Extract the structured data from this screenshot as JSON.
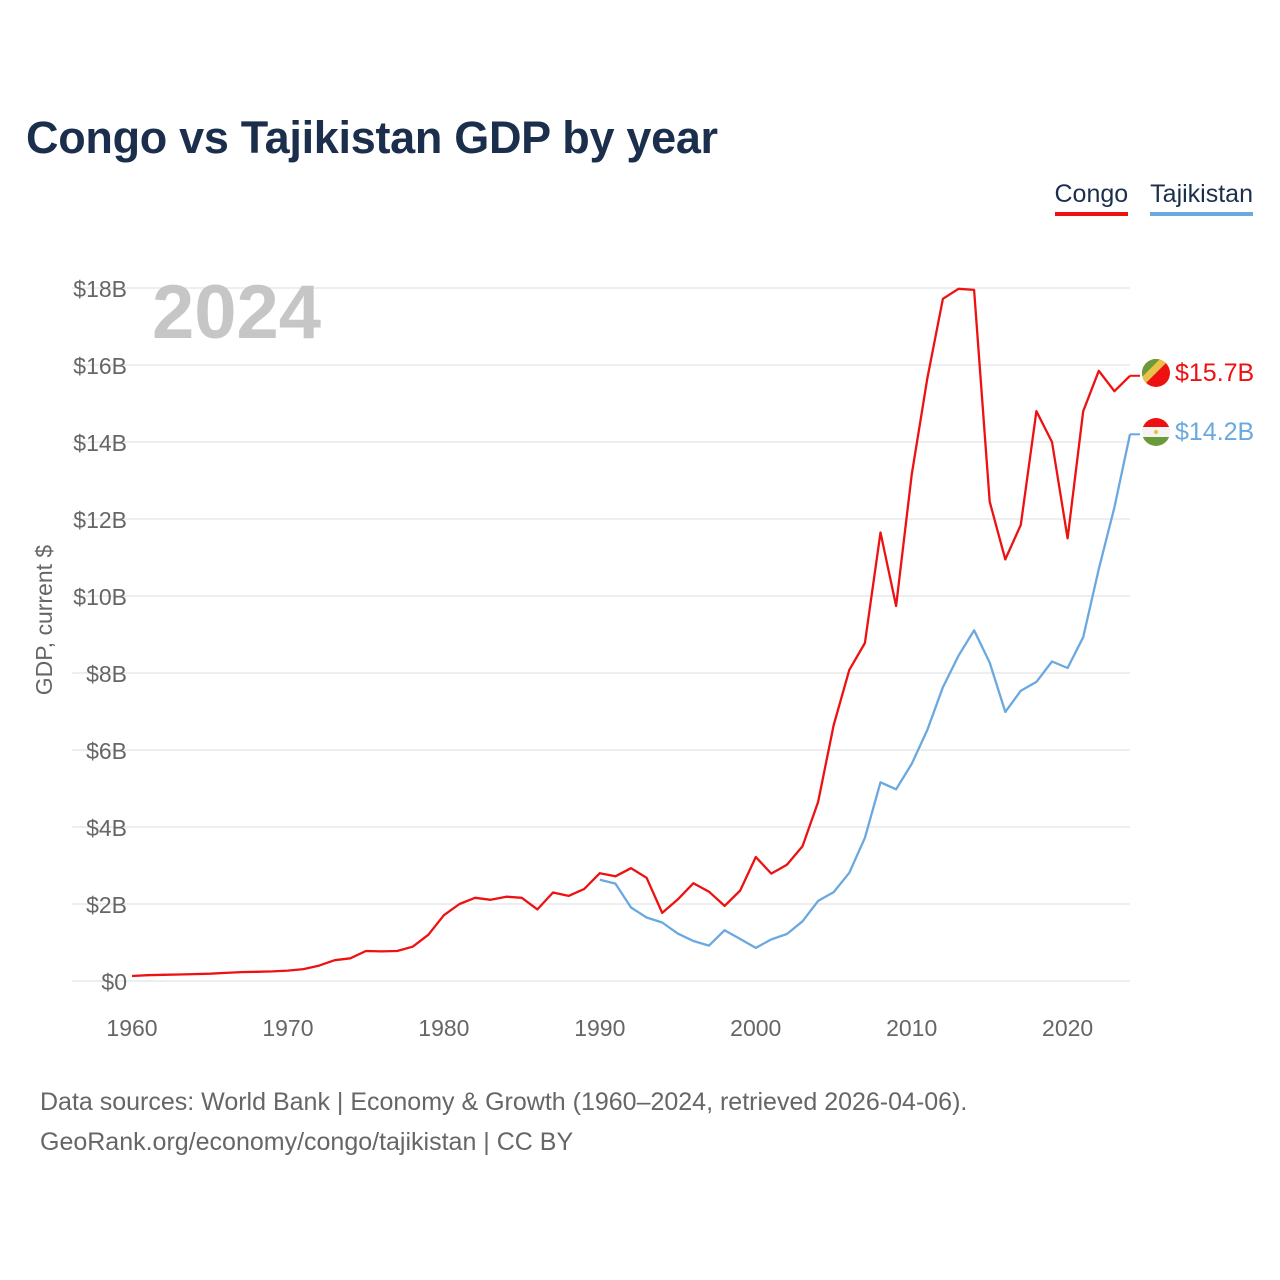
{
  "title": "Congo vs Tajikistan GDP by year",
  "legend": [
    {
      "name": "Congo",
      "color": "#ee1111"
    },
    {
      "name": "Tajikistan",
      "color": "#6aa8e0"
    }
  ],
  "footer": {
    "line1": "Data sources: World Bank | Economy & Growth (1960–2024, retrieved 2026-04-06).",
    "line2": "GeoRank.org/economy/congo/tajikistan | CC BY"
  },
  "chart_data": {
    "type": "line",
    "title": "Congo vs Tajikistan GDP by year",
    "ylabel": "GDP, current $",
    "xlabel": "",
    "year_watermark": "2024",
    "xlim": [
      1960,
      2024
    ],
    "ylim": [
      0,
      18
    ],
    "y_unit": "billion USD",
    "x_ticks": [
      1960,
      1970,
      1980,
      1990,
      2000,
      2010,
      2020
    ],
    "x_tick_labels": [
      "1960",
      "1970",
      "1980",
      "1990",
      "2000",
      "2010",
      "2020"
    ],
    "y_ticks": [
      0,
      2,
      4,
      6,
      8,
      10,
      12,
      14,
      16,
      18
    ],
    "y_tick_labels": [
      "$0",
      "$2B",
      "$4B",
      "$6B",
      "$8B",
      "$10B",
      "$12B",
      "$14B",
      "$16B",
      "$18B"
    ],
    "grid": true,
    "series": [
      {
        "name": "Congo",
        "color": "#ee1111",
        "end_label": "$15.7B",
        "flag_icon": "congo-flag-icon",
        "x": [
          1960,
          1961,
          1962,
          1963,
          1964,
          1965,
          1966,
          1967,
          1968,
          1969,
          1970,
          1971,
          1972,
          1973,
          1974,
          1975,
          1976,
          1977,
          1978,
          1979,
          1980,
          1981,
          1982,
          1983,
          1984,
          1985,
          1986,
          1987,
          1988,
          1989,
          1990,
          1991,
          1992,
          1993,
          1994,
          1995,
          1996,
          1997,
          1998,
          1999,
          2000,
          2001,
          2002,
          2003,
          2004,
          2005,
          2006,
          2007,
          2008,
          2009,
          2010,
          2011,
          2012,
          2013,
          2014,
          2015,
          2016,
          2017,
          2018,
          2019,
          2020,
          2021,
          2022,
          2023,
          2024
        ],
        "values": [
          0.13,
          0.15,
          0.16,
          0.17,
          0.18,
          0.19,
          0.21,
          0.23,
          0.24,
          0.25,
          0.27,
          0.31,
          0.4,
          0.54,
          0.59,
          0.78,
          0.77,
          0.78,
          0.89,
          1.2,
          1.71,
          2.0,
          2.16,
          2.11,
          2.19,
          2.16,
          1.86,
          2.3,
          2.21,
          2.39,
          2.8,
          2.72,
          2.93,
          2.68,
          1.77,
          2.12,
          2.54,
          2.32,
          1.95,
          2.35,
          3.22,
          2.79,
          3.02,
          3.5,
          4.65,
          6.65,
          8.08,
          8.78,
          11.65,
          9.74,
          13.15,
          15.65,
          17.72,
          17.98,
          17.95,
          12.45,
          10.95,
          11.85,
          14.8,
          14.0,
          11.5,
          14.8,
          15.85,
          15.32,
          15.72
        ]
      },
      {
        "name": "Tajikistan",
        "color": "#6aa8e0",
        "end_label": "$14.2B",
        "flag_icon": "tajikistan-flag-icon",
        "x": [
          1990,
          1991,
          1992,
          1993,
          1994,
          1995,
          1996,
          1997,
          1998,
          1999,
          2000,
          2001,
          2002,
          2003,
          2004,
          2005,
          2006,
          2007,
          2008,
          2009,
          2010,
          2011,
          2012,
          2013,
          2014,
          2015,
          2016,
          2017,
          2018,
          2019,
          2020,
          2021,
          2022,
          2023,
          2024
        ],
        "values": [
          2.63,
          2.53,
          1.91,
          1.65,
          1.52,
          1.23,
          1.04,
          0.92,
          1.32,
          1.09,
          0.86,
          1.08,
          1.22,
          1.55,
          2.08,
          2.31,
          2.81,
          3.72,
          5.16,
          4.98,
          5.64,
          6.52,
          7.63,
          8.45,
          9.11,
          8.27,
          6.99,
          7.54,
          7.77,
          8.3,
          8.13,
          8.93,
          10.7,
          12.3,
          14.2
        ]
      }
    ]
  }
}
